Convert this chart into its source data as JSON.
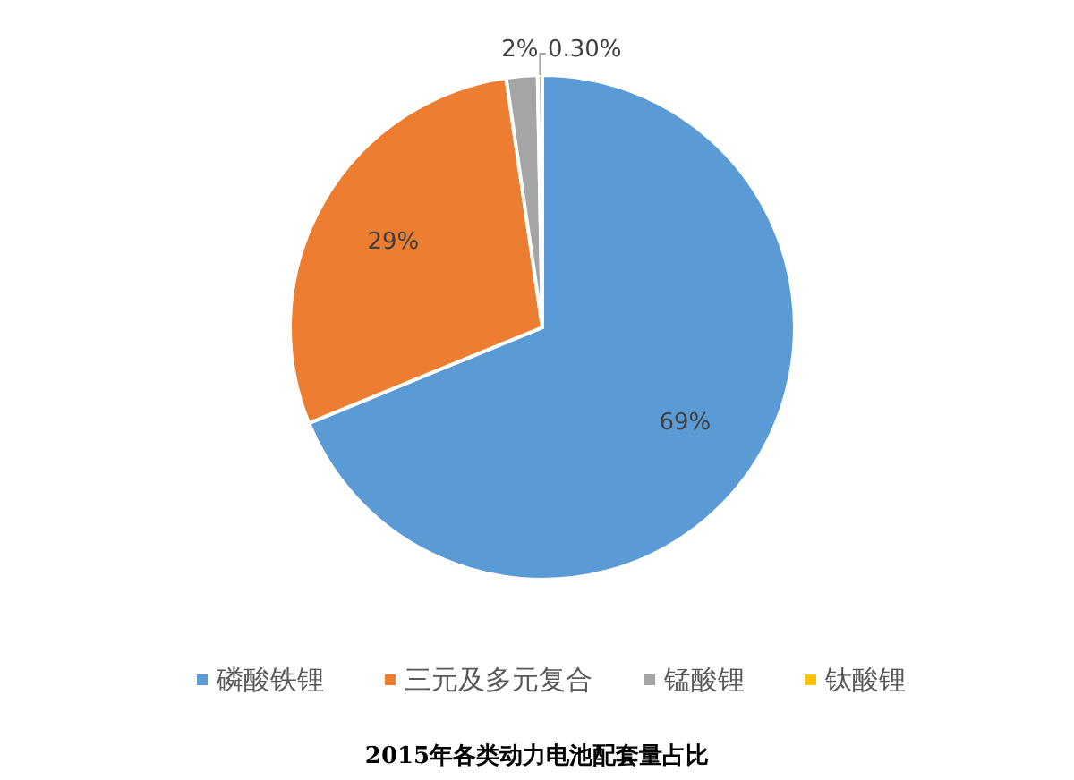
{
  "chart_data": {
    "type": "pie",
    "title": "2015年各类动力电池配套量占比",
    "categories": [
      "磷酸铁锂",
      "三元及多元复合",
      "锰酸锂",
      "钛酸锂"
    ],
    "values": [
      69,
      29,
      2,
      0.3
    ],
    "colors": [
      "#5b9bd5",
      "#ed7d31",
      "#a5a5a5",
      "#ffc000"
    ],
    "value_labels": [
      "69%",
      "29%",
      "2%",
      "0.30%"
    ],
    "legend": "bottom"
  }
}
